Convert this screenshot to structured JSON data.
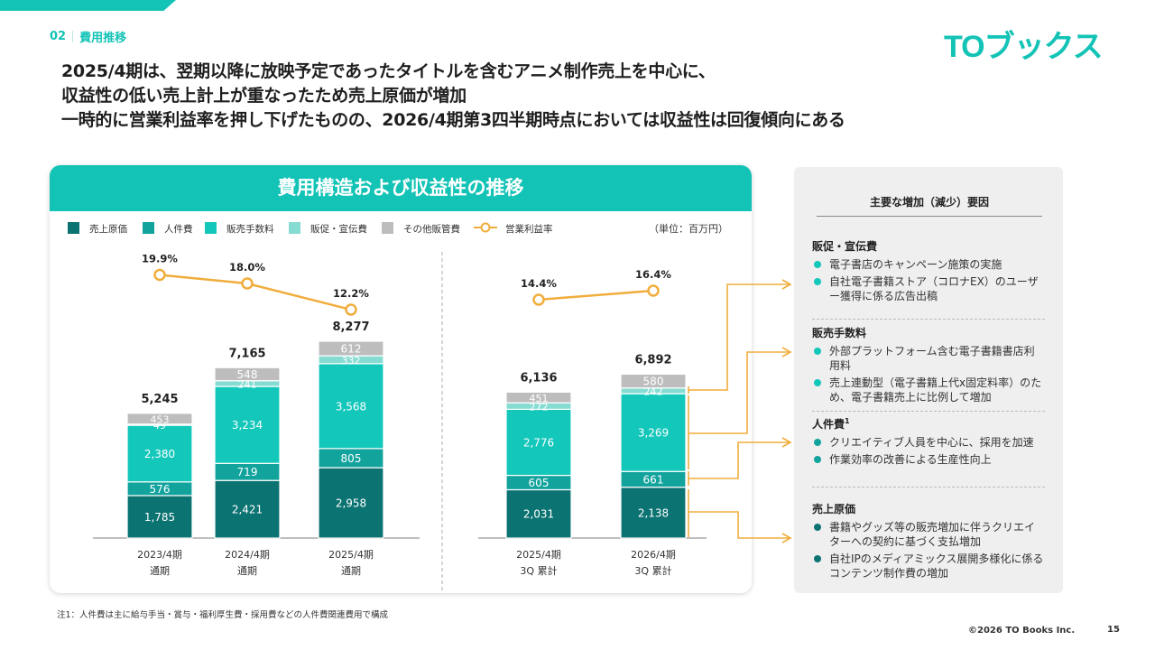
{
  "header": {
    "section_number": "02",
    "section_title": "費用推移",
    "logo_text": "TOブックス"
  },
  "headline": [
    "2025/4期は、翌期以降に放映予定であったタイトルを含むアニメ制作売上を中心に、",
    "収益性の低い売上計上が重なったため売上原価が増加",
    "一時的に営業利益率を押し下げたものの、2026/4期第3四半期時点においては収益性は回復傾向にある"
  ],
  "chart_card": {
    "title": "費用構造および収益性の推移",
    "unit_label": "（単位：百万円）"
  },
  "colors": {
    "brand": "#13c3b6",
    "cost_of_sales": "#0b7372",
    "personnel": "#12a39d",
    "sales_commission": "#13c7ba",
    "promotion": "#86dcd3",
    "other_sga": "#bdbdbd",
    "margin_line": "#f0ad3c"
  },
  "chart_data": {
    "type": "bar",
    "stacked": true,
    "title": "費用構造および収益性の推移",
    "unit": "百万円",
    "legend_position": "top",
    "groups": [
      {
        "name": "full_year",
        "categories": [
          0,
          1,
          2
        ]
      },
      {
        "name": "q3_cumulative",
        "categories": [
          3,
          4
        ]
      }
    ],
    "categories": [
      {
        "line1": "2023/4期",
        "line2": "通期"
      },
      {
        "line1": "2024/4期",
        "line2": "通期"
      },
      {
        "line1": "2025/4期",
        "line2": "通期"
      },
      {
        "line1": "2025/4期",
        "line2": "3Q 累計"
      },
      {
        "line1": "2026/4期",
        "line2": "3Q 累計"
      }
    ],
    "series": [
      {
        "name": "売上原価",
        "color_key": "cost_of_sales",
        "values": [
          1785,
          2421,
          2958,
          2031,
          2138
        ],
        "labels": [
          "1,785",
          "2,421",
          "2,958",
          "2,031",
          "2,138"
        ]
      },
      {
        "name": "人件費",
        "color_key": "personnel",
        "values": [
          576,
          719,
          805,
          605,
          661
        ],
        "labels": [
          "576",
          "719",
          "805",
          "605",
          "661"
        ]
      },
      {
        "name": "販売手数料",
        "color_key": "sales_commission",
        "values": [
          2380,
          3234,
          3568,
          2776,
          3269
        ],
        "labels": [
          "2,380",
          "3,234",
          "3,568",
          "2,776",
          "3,269"
        ]
      },
      {
        "name": "販促・宣伝費",
        "color_key": "promotion",
        "values": [
          49,
          241,
          332,
          272,
          242
        ],
        "labels": [
          "49",
          "241",
          "332",
          "272",
          "242"
        ]
      },
      {
        "name": "その他販管費",
        "color_key": "other_sga",
        "values": [
          453,
          548,
          612,
          451,
          580
        ],
        "labels": [
          "453",
          "548",
          "612",
          "451",
          "580"
        ]
      }
    ],
    "totals": [
      5245,
      7165,
      8277,
      6136,
      6892
    ],
    "total_labels": [
      "5,245",
      "7,165",
      "8,277",
      "6,136",
      "6,892"
    ],
    "line_series": {
      "name": "営業利益率",
      "values": [
        19.9,
        18.0,
        12.2,
        14.4,
        16.4
      ],
      "labels": [
        "19.9%",
        "18.0%",
        "12.2%",
        "14.4%",
        "16.4%"
      ]
    }
  },
  "factors": {
    "title": "主要な増加（減少）要因",
    "groups": [
      {
        "heading": "販促・宣伝費",
        "sup": "",
        "bullet_color": "#13c7ba",
        "items": [
          "電子書店のキャンペーン施策の実施",
          "自社電子書籍ストア（コロナEX）のユーザー獲得に係る広告出稿"
        ]
      },
      {
        "heading": "販売手数料",
        "sup": "",
        "bullet_color": "#13c7ba",
        "items": [
          "外部プラットフォーム含む電子書籍書店利用料",
          "売上連動型（電子書籍上代x固定料率）のため、電子書籍売上に比例して増加"
        ]
      },
      {
        "heading": "人件費",
        "sup": "1",
        "bullet_color": "#12a39d",
        "items": [
          "クリエイティブ人員を中心に、採用を加速",
          "作業効率の改善による生産性向上"
        ]
      },
      {
        "heading": "売上原価",
        "sup": "",
        "bullet_color": "#0b7372",
        "items": [
          "書籍やグッズ等の販売増加に伴うクリエイターへの契約に基づく支払増加",
          "自社IPのメディアミックス展開多様化に係るコンテンツ制作費の増加"
        ]
      }
    ]
  },
  "footer": {
    "footnote": "注1：人件費は主に給与手当・賞与・福利厚生費・採用費などの人件費関連費用で構成",
    "copyright": "©2026  TO Books Inc.",
    "page_number": "15"
  }
}
